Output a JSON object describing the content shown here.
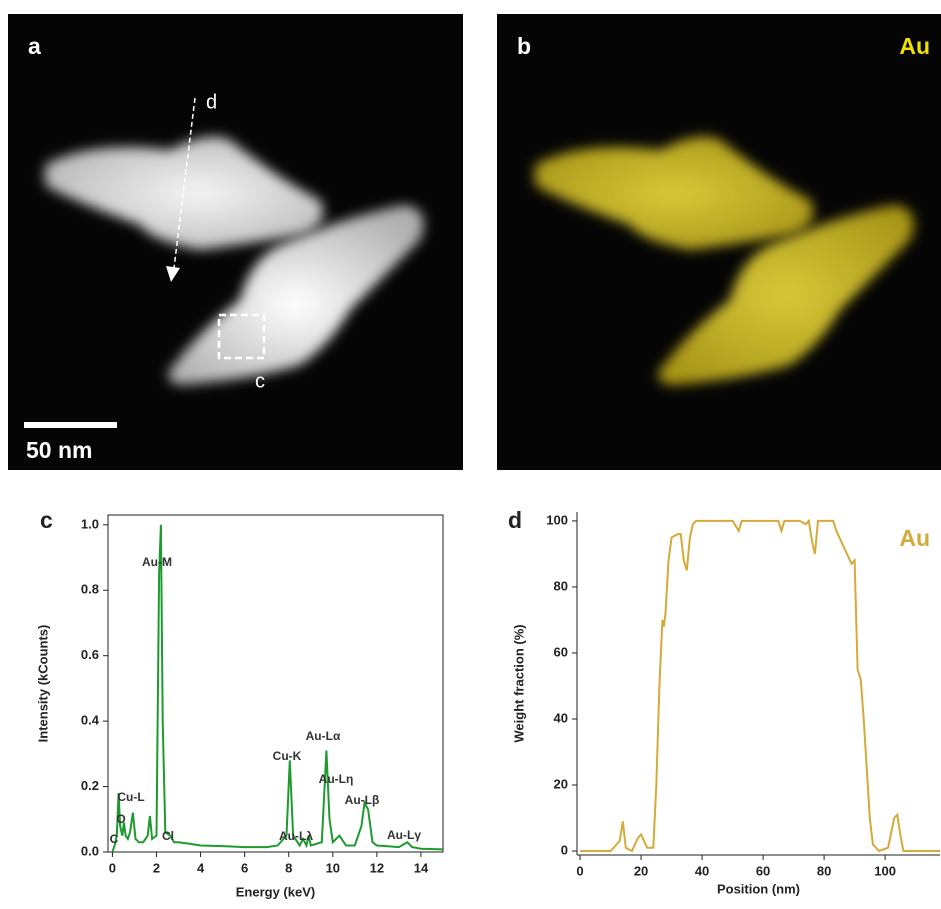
{
  "panels": [
    {
      "label": "a",
      "annotations": [
        "d",
        "c"
      ],
      "scale_bar": "50 nm"
    },
    {
      "label": "b",
      "element": "Au"
    }
  ],
  "chart_data": [
    {
      "type": "line",
      "panel_label": "c",
      "x_label": "Energy (keV)",
      "y_label": "Intensity (kCounts)",
      "color": "#1f9a2e",
      "x": [
        0.0,
        0.1,
        0.2,
        0.28,
        0.35,
        0.45,
        0.52,
        0.6,
        0.7,
        0.8,
        0.93,
        1.05,
        1.2,
        1.4,
        1.6,
        1.7,
        1.8,
        2.0,
        2.12,
        2.2,
        2.28,
        2.4,
        2.62,
        2.8,
        3.0,
        3.5,
        4.0,
        5.0,
        6.0,
        7.0,
        7.5,
        7.9,
        8.05,
        8.2,
        8.5,
        8.65,
        8.8,
        8.9,
        9.0,
        9.5,
        9.71,
        9.85,
        10.0,
        10.3,
        10.6,
        11.0,
        11.3,
        11.44,
        11.6,
        11.8,
        12.0,
        13.0,
        13.38,
        13.6,
        14.0,
        15.0
      ],
      "values": [
        0.0,
        0.02,
        0.05,
        0.18,
        0.08,
        0.05,
        0.09,
        0.05,
        0.04,
        0.06,
        0.12,
        0.04,
        0.03,
        0.03,
        0.05,
        0.11,
        0.04,
        0.05,
        0.85,
        1.0,
        0.4,
        0.06,
        0.05,
        0.03,
        0.03,
        0.025,
        0.02,
        0.018,
        0.015,
        0.015,
        0.02,
        0.05,
        0.28,
        0.05,
        0.02,
        0.04,
        0.02,
        0.05,
        0.02,
        0.03,
        0.31,
        0.1,
        0.03,
        0.05,
        0.02,
        0.02,
        0.08,
        0.15,
        0.13,
        0.03,
        0.02,
        0.015,
        0.03,
        0.015,
        0.01,
        0.008
      ],
      "annotations": [
        "Au-M",
        "Cu-L",
        "O",
        "C",
        "Cl",
        "Cu-K",
        "Au-Lα",
        "Au-Lλ",
        "Au-Lη",
        "Au-Lβ",
        "Au-Lγ"
      ],
      "xlim": [
        -0.2,
        15.0
      ],
      "xticks": [
        0,
        2,
        4,
        6,
        8,
        10,
        12,
        14
      ],
      "ylim": [
        0,
        1.03
      ],
      "yticks": [
        {
          "value": 0,
          "label": "0.0"
        },
        0.2,
        0.4,
        0.6,
        0.8,
        {
          "value": 1,
          "label": "1.0"
        }
      ],
      "frame": true
    },
    {
      "type": "line",
      "panel_label": "d",
      "x_label": "Position (nm)",
      "y_label": "Weight fraction (%)",
      "x": [
        0,
        10,
        13,
        14,
        15,
        17,
        19,
        20,
        22,
        24,
        25,
        26,
        27,
        27.5,
        28,
        29,
        30,
        32,
        33,
        34,
        35,
        36,
        37,
        38,
        50,
        52,
        53,
        65,
        66,
        67,
        70,
        72,
        74,
        75,
        76,
        77,
        78,
        83,
        84,
        86,
        88,
        89,
        90,
        91,
        92,
        93,
        95,
        96,
        98,
        101,
        103,
        104,
        105,
        106,
        118
      ],
      "series": [
        {
          "name": "Au",
          "color": "#d4aa3a",
          "values": [
            0,
            0,
            3,
            9,
            1,
            0,
            4,
            5,
            1,
            1,
            20,
            50,
            70,
            68,
            72,
            88,
            95,
            96,
            96,
            88,
            85,
            95,
            99,
            100,
            100,
            97,
            100,
            100,
            97,
            100,
            100,
            100,
            99,
            100,
            94,
            90,
            100,
            100,
            97,
            93,
            89,
            87,
            88,
            55,
            52,
            40,
            10,
            2,
            0,
            1,
            10,
            11,
            5,
            0,
            0
          ]
        }
      ],
      "xlim": [
        -1,
        118
      ],
      "xticks": [
        0,
        20,
        40,
        60,
        80,
        100
      ],
      "ylim": [
        -1.2,
        102.7
      ],
      "yticks": [
        0,
        20,
        40,
        60,
        80,
        100
      ],
      "frame": false
    }
  ]
}
